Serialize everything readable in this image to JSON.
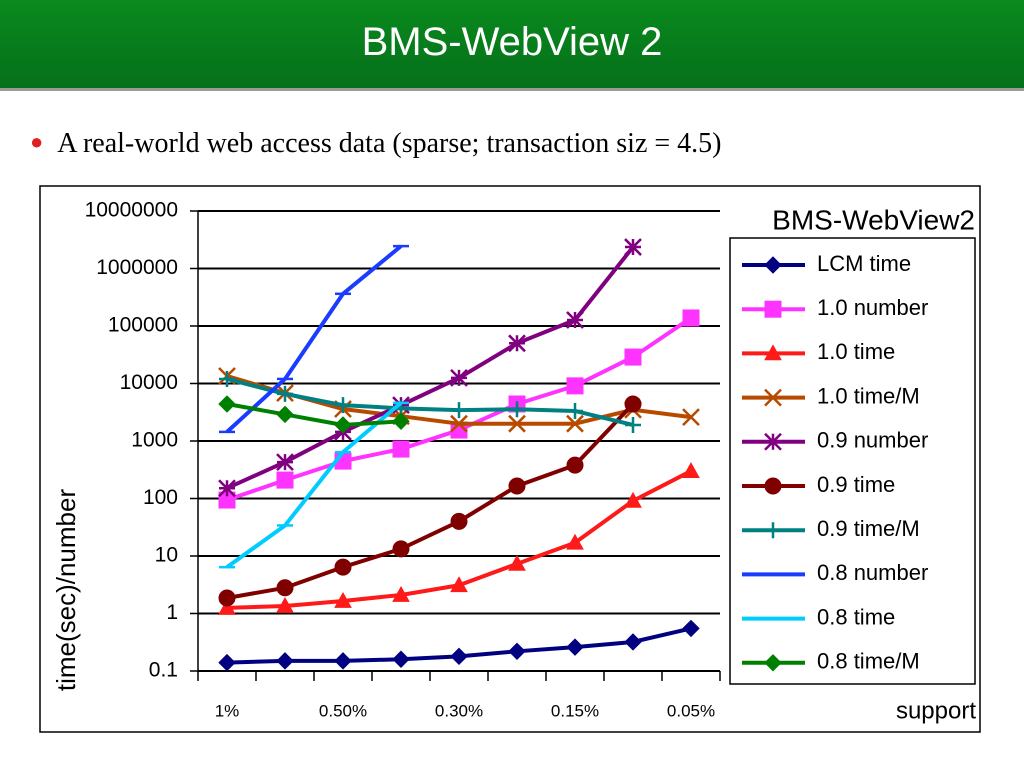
{
  "header": {
    "title": "BMS-WebView 2"
  },
  "bullets": [
    "A real-world web access data (sparse; transaction siz = 4.5)"
  ],
  "chart_data": {
    "type": "line",
    "title": "BMS-WebView2",
    "y_label": "time(sec)/number",
    "x_label": "support",
    "log": true,
    "grid": true,
    "legend": "right",
    "categories": [
      "1%",
      null,
      "0.50%",
      null,
      "0.30%",
      null,
      "0.15%",
      null,
      "0.05%"
    ],
    "ylim": [
      0.1,
      10000000
    ],
    "yticks": [
      0.1,
      1,
      10,
      100,
      1000,
      10000,
      100000,
      1000000,
      10000000
    ],
    "series": [
      {
        "name": "LCM time",
        "color": "#000080",
        "marker": "diamond",
        "values": [
          0.14,
          0.15,
          0.15,
          0.16,
          0.18,
          0.22,
          0.26,
          0.32,
          0.55
        ]
      },
      {
        "name": "1.0 number",
        "color": "#ff33ff",
        "marker": "square",
        "values": [
          94,
          209,
          447,
          724,
          1550,
          4400,
          9100,
          28800,
          138000
        ]
      },
      {
        "name": "1.0 time",
        "color": "#ff1a1a",
        "marker": "triangle",
        "values": [
          1.25,
          1.35,
          1.65,
          2.1,
          3.1,
          7.3,
          17,
          91,
          300
        ]
      },
      {
        "name": "1.0 time/M",
        "color": "#b84a00",
        "marker": "x",
        "values": [
          13500,
          6800,
          3600,
          2700,
          2000,
          2000,
          2000,
          3500,
          2600
        ]
      },
      {
        "name": "0.9 number",
        "color": "#800080",
        "marker": "star",
        "values": [
          151,
          430,
          1440,
          4200,
          12500,
          50000,
          127000,
          2360000,
          null
        ]
      },
      {
        "name": "0.9 time",
        "color": "#800000",
        "marker": "circle",
        "values": [
          1.86,
          2.8,
          6.4,
          13.3,
          40,
          165,
          380,
          4400,
          null
        ]
      },
      {
        "name": "0.9 time/M",
        "color": "#008080",
        "marker": "plus",
        "values": [
          12000,
          6600,
          4200,
          3700,
          3450,
          3570,
          3330,
          1900,
          null
        ]
      },
      {
        "name": "0.8 number",
        "color": "#1a3cff",
        "marker": "dash",
        "values": [
          1440,
          12000,
          363000,
          2450000,
          null,
          null,
          null,
          null,
          null
        ]
      },
      {
        "name": "0.8 time",
        "color": "#00ccff",
        "marker": "dash",
        "values": [
          6.4,
          34,
          640,
          4600,
          null,
          null,
          null,
          null,
          null
        ]
      },
      {
        "name": "0.8 time/M",
        "color": "#008000",
        "marker": "diamond",
        "values": [
          4400,
          2900,
          1900,
          2200,
          null,
          null,
          null,
          null,
          null
        ]
      }
    ]
  }
}
